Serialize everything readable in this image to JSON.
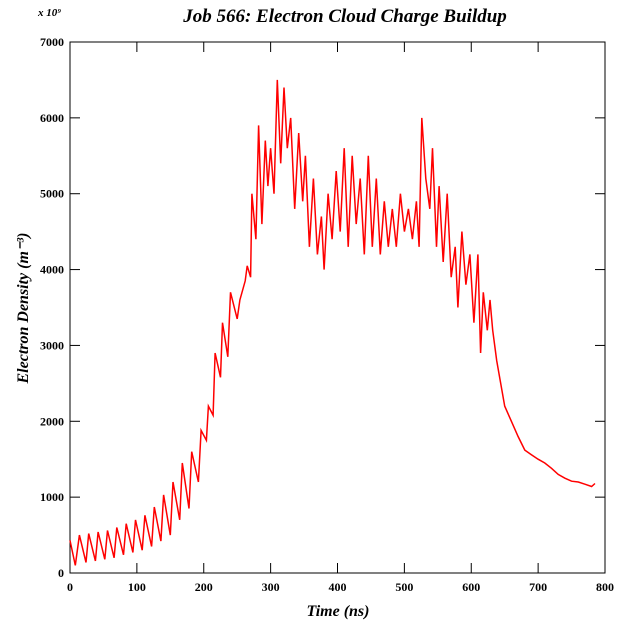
{
  "chart_data": {
    "type": "line",
    "title": "Job 566: Electron Cloud Charge Buildup",
    "x_label": "Time (ns)",
    "y_label": "Electron Density (m⁻³)",
    "y_multiplier": "x 10⁹",
    "xlim": [
      0,
      800
    ],
    "xticks": [
      0,
      100,
      200,
      300,
      400,
      500,
      600,
      700,
      800
    ],
    "ylim": [
      0,
      7000
    ],
    "yticks": [
      0,
      1000,
      2000,
      3000,
      4000,
      5000,
      6000,
      7000
    ],
    "grid": false,
    "series": [
      {
        "color": "#ff0000",
        "x": [
          0,
          8,
          14,
          24,
          28,
          38,
          42,
          52,
          56,
          66,
          70,
          80,
          84,
          94,
          98,
          108,
          112,
          122,
          126,
          136,
          140,
          150,
          154,
          164,
          168,
          178,
          182,
          192,
          196,
          204,
          207,
          214,
          217,
          225,
          228,
          236,
          240,
          250,
          254,
          262,
          265,
          270,
          272,
          278,
          282,
          287,
          292,
          296,
          300,
          305,
          310,
          315,
          320,
          325,
          330,
          336,
          342,
          348,
          352,
          358,
          364,
          370,
          376,
          380,
          386,
          392,
          398,
          404,
          410,
          416,
          422,
          428,
          434,
          440,
          446,
          452,
          458,
          464,
          470,
          476,
          482,
          488,
          494,
          500,
          506,
          512,
          518,
          522,
          526,
          532,
          538,
          542,
          548,
          552,
          558,
          564,
          570,
          576,
          580,
          586,
          592,
          598,
          604,
          610,
          614,
          618,
          624,
          628,
          632,
          638,
          644,
          650,
          660,
          670,
          680,
          690,
          700,
          710,
          720,
          730,
          740,
          750,
          760,
          770,
          780,
          785
        ],
        "values": [
          430,
          100,
          500,
          140,
          520,
          160,
          540,
          180,
          560,
          200,
          600,
          240,
          650,
          270,
          700,
          300,
          760,
          350,
          870,
          420,
          1030,
          500,
          1200,
          700,
          1450,
          850,
          1600,
          1200,
          1880,
          1750,
          2200,
          2080,
          2900,
          2580,
          3300,
          2850,
          3700,
          3350,
          3600,
          3850,
          4050,
          3900,
          5000,
          4400,
          5900,
          4600,
          5700,
          5100,
          5600,
          5000,
          6500,
          5400,
          6400,
          5600,
          6000,
          4800,
          5800,
          4900,
          5500,
          4300,
          5200,
          4200,
          4700,
          4000,
          5000,
          4400,
          5300,
          4500,
          5600,
          4300,
          5500,
          4600,
          5200,
          4200,
          5500,
          4300,
          5200,
          4200,
          4900,
          4300,
          4800,
          4300,
          5000,
          4500,
          4800,
          4400,
          4900,
          4300,
          6000,
          5200,
          4800,
          5600,
          4300,
          5100,
          4100,
          5000,
          3900,
          4300,
          3500,
          4500,
          3800,
          4200,
          3300,
          4200,
          2900,
          3700,
          3200,
          3600,
          3200,
          2800,
          2500,
          2200,
          2000,
          1800,
          1620,
          1560,
          1500,
          1450,
          1380,
          1300,
          1250,
          1210,
          1200,
          1170,
          1140,
          1180
        ]
      }
    ]
  }
}
